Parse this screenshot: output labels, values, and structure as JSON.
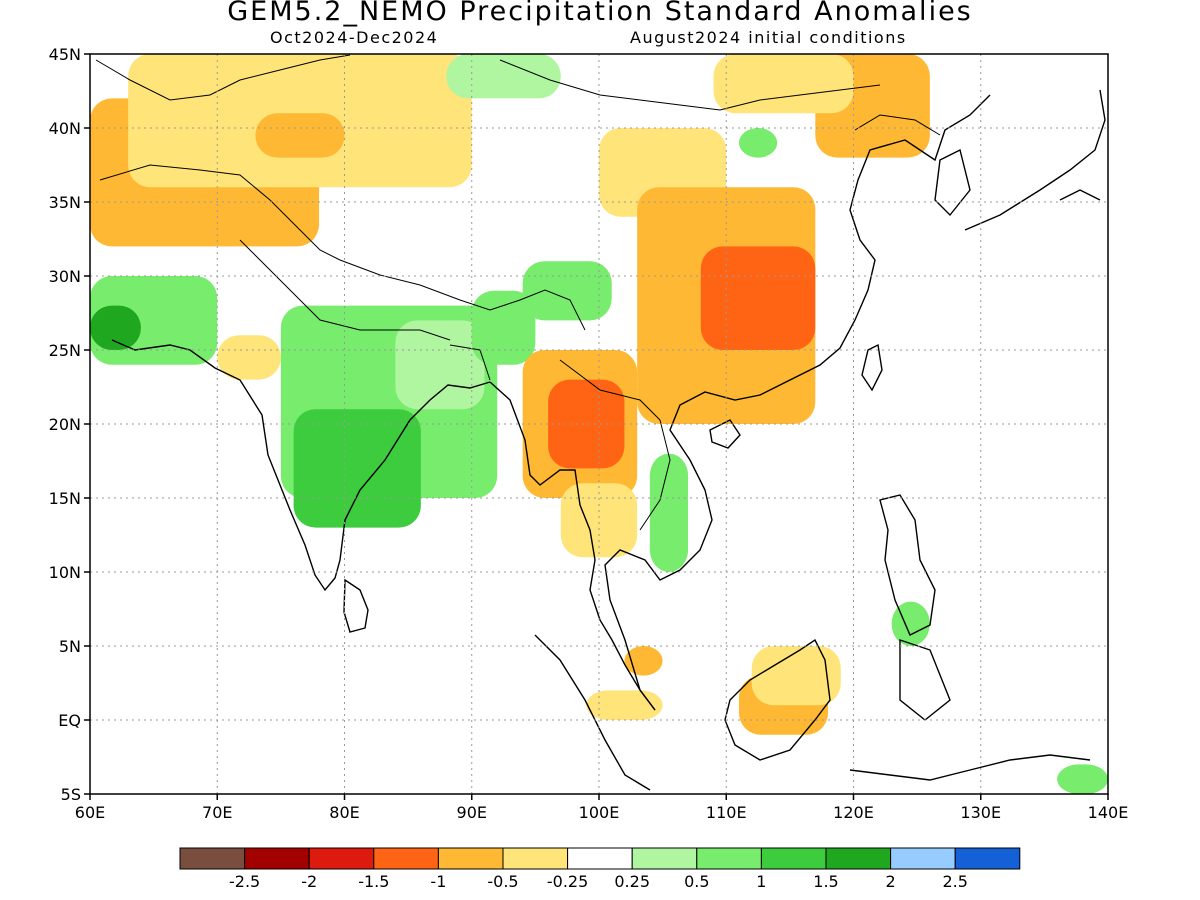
{
  "title": "GEM5.2_NEMO Precipitation Standard Anomalies",
  "period": "Oct2024-Dec2024",
  "init": "August2024 initial conditions",
  "map": {
    "lon_range": [
      60,
      140
    ],
    "lat_range": [
      -5,
      45
    ],
    "lon_ticks": [
      {
        "v": 60,
        "label": "60E"
      },
      {
        "v": 70,
        "label": "70E"
      },
      {
        "v": 80,
        "label": "80E"
      },
      {
        "v": 90,
        "label": "90E"
      },
      {
        "v": 100,
        "label": "100E"
      },
      {
        "v": 110,
        "label": "110E"
      },
      {
        "v": 120,
        "label": "120E"
      },
      {
        "v": 130,
        "label": "130E"
      },
      {
        "v": 140,
        "label": "140E"
      }
    ],
    "lat_ticks": [
      {
        "v": 45,
        "label": "45N"
      },
      {
        "v": 40,
        "label": "40N"
      },
      {
        "v": 35,
        "label": "35N"
      },
      {
        "v": 30,
        "label": "30N"
      },
      {
        "v": 25,
        "label": "25N"
      },
      {
        "v": 20,
        "label": "20N"
      },
      {
        "v": 15,
        "label": "15N"
      },
      {
        "v": 10,
        "label": "10N"
      },
      {
        "v": 5,
        "label": "5N"
      },
      {
        "v": 0,
        "label": "EQ"
      },
      {
        "v": -5,
        "label": "5S"
      }
    ],
    "grid": true
  },
  "legend": {
    "colors": [
      "#7a4e3e",
      "#a30000",
      "#dd1a0e",
      "#ff6414",
      "#ffb833",
      "#ffe47a",
      "#ffffff",
      "#b0f5a0",
      "#78ec6c",
      "#3dcc3d",
      "#1fa81f",
      "#96ccff",
      "#1460d6"
    ],
    "labels": [
      "-2.5",
      "-2",
      "-1.5",
      "-1",
      "-0.5",
      "-0.25",
      "0.25",
      "0.5",
      "1",
      "1.5",
      "2",
      "2.5"
    ]
  },
  "anomaly_regions": [
    {
      "level": 4,
      "lon": [
        60,
        78
      ],
      "lat": [
        32,
        42
      ]
    },
    {
      "level": 5,
      "lon": [
        63,
        90
      ],
      "lat": [
        36,
        45
      ]
    },
    {
      "level": 4,
      "lon": [
        73,
        80
      ],
      "lat": [
        38,
        41
      ]
    },
    {
      "level": 8,
      "lon": [
        60,
        70
      ],
      "lat": [
        24,
        30
      ]
    },
    {
      "level": 10,
      "lon": [
        60,
        64
      ],
      "lat": [
        25,
        28
      ]
    },
    {
      "level": 5,
      "lon": [
        70,
        75
      ],
      "lat": [
        23,
        26
      ]
    },
    {
      "level": 8,
      "lon": [
        75,
        92
      ],
      "lat": [
        15,
        28
      ]
    },
    {
      "level": 9,
      "lon": [
        76,
        86
      ],
      "lat": [
        13,
        21
      ]
    },
    {
      "level": 7,
      "lon": [
        84,
        91
      ],
      "lat": [
        21,
        27
      ]
    },
    {
      "level": 8,
      "lon": [
        90,
        95
      ],
      "lat": [
        24,
        29
      ]
    },
    {
      "level": 8,
      "lon": [
        94,
        101
      ],
      "lat": [
        27,
        31
      ]
    },
    {
      "level": 7,
      "lon": [
        88,
        97
      ],
      "lat": [
        42,
        45
      ]
    },
    {
      "level": 4,
      "lon": [
        94,
        103
      ],
      "lat": [
        15,
        25
      ]
    },
    {
      "level": 3,
      "lon": [
        96,
        102
      ],
      "lat": [
        17,
        23
      ]
    },
    {
      "level": 5,
      "lon": [
        97,
        103
      ],
      "lat": [
        11,
        16
      ]
    },
    {
      "level": 8,
      "lon": [
        104,
        107
      ],
      "lat": [
        10,
        18
      ]
    },
    {
      "level": 5,
      "lon": [
        100,
        110
      ],
      "lat": [
        34,
        40
      ]
    },
    {
      "level": 4,
      "lon": [
        103,
        117
      ],
      "lat": [
        20,
        36
      ]
    },
    {
      "level": 3,
      "lon": [
        108,
        117
      ],
      "lat": [
        25,
        32
      ]
    },
    {
      "level": 4,
      "lon": [
        117,
        126
      ],
      "lat": [
        38,
        45
      ]
    },
    {
      "level": 5,
      "lon": [
        109,
        120
      ],
      "lat": [
        41,
        45
      ]
    },
    {
      "level": 4,
      "lon": [
        111,
        118
      ],
      "lat": [
        -1,
        3
      ]
    },
    {
      "level": 5,
      "lon": [
        112,
        119
      ],
      "lat": [
        1,
        5
      ]
    },
    {
      "level": 4,
      "lon": [
        102,
        105
      ],
      "lat": [
        3,
        5
      ]
    },
    {
      "level": 5,
      "lon": [
        99,
        105
      ],
      "lat": [
        0,
        2
      ]
    },
    {
      "level": 8,
      "lon": [
        136,
        140
      ],
      "lat": [
        -5,
        -3
      ]
    },
    {
      "level": 8,
      "lon": [
        111,
        114
      ],
      "lat": [
        38,
        40
      ]
    },
    {
      "level": 8,
      "lon": [
        123,
        126
      ],
      "lat": [
        5,
        8
      ]
    }
  ]
}
